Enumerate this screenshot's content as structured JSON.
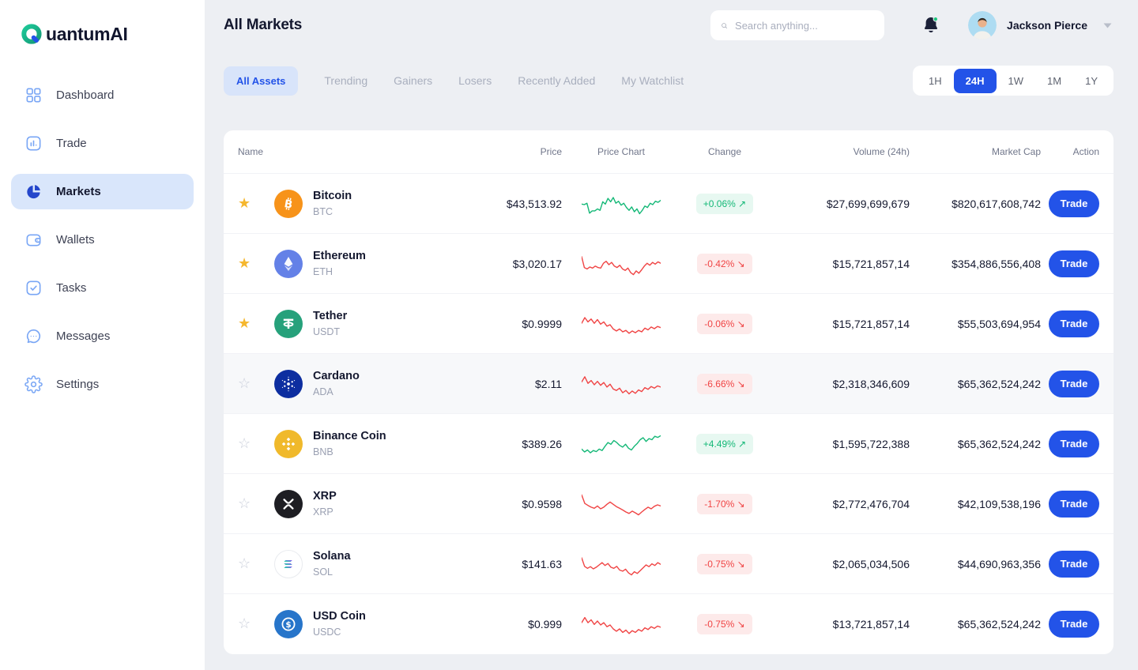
{
  "brand": {
    "name": "QuantumAI"
  },
  "sidebar": {
    "items": [
      {
        "label": "Dashboard",
        "icon": "dashboard-icon",
        "active": false
      },
      {
        "label": "Trade",
        "icon": "trade-icon",
        "active": false
      },
      {
        "label": "Markets",
        "icon": "markets-icon",
        "active": true
      },
      {
        "label": "Wallets",
        "icon": "wallets-icon",
        "active": false
      },
      {
        "label": "Tasks",
        "icon": "tasks-icon",
        "active": false
      },
      {
        "label": "Messages",
        "icon": "messages-icon",
        "active": false
      },
      {
        "label": "Settings",
        "icon": "settings-icon",
        "active": false
      }
    ]
  },
  "header": {
    "title": "All Markets",
    "search_placeholder": "Search anything...",
    "user_name": "Jackson Pierce",
    "notifications_unread": true
  },
  "tabs": [
    {
      "label": "All Assets",
      "active": true
    },
    {
      "label": "Trending",
      "active": false
    },
    {
      "label": "Gainers",
      "active": false
    },
    {
      "label": "Losers",
      "active": false
    },
    {
      "label": "Recently Added",
      "active": false
    },
    {
      "label": "My Watchlist",
      "active": false
    }
  ],
  "time_filters": [
    {
      "label": "1H",
      "active": false
    },
    {
      "label": "24H",
      "active": true
    },
    {
      "label": "1W",
      "active": false
    },
    {
      "label": "1M",
      "active": false
    },
    {
      "label": "1Y",
      "active": false
    }
  ],
  "colors": {
    "accent": "#2353E8",
    "positive": "#14B877",
    "positive_bg": "#E7F8F1",
    "negative": "#F04444",
    "negative_bg": "#FDEAEA",
    "star_active": "#F5B72F",
    "star_inactive": "#C9CEDA"
  },
  "table": {
    "columns": [
      "Name",
      "Price",
      "Price Chart",
      "Change",
      "Volume (24h)",
      "Market Cap",
      "Action"
    ],
    "trade_label": "Trade",
    "arrow_up": "↗",
    "arrow_down": "↘",
    "rows": [
      {
        "name": "Bitcoin",
        "symbol": "BTC",
        "icon": "bitcoin-icon",
        "icon_bg": "#F7931A",
        "favorited": true,
        "highlighted": false,
        "price": "$43,513.92",
        "change": "+0.06%",
        "direction": "up",
        "volume": "$27,699,699,679",
        "market_cap": "$820,617,608,742",
        "spark": [
          52,
          50,
          55,
          20,
          28,
          28,
          35,
          30,
          60,
          52,
          72,
          60,
          75,
          55,
          62,
          48,
          55,
          40,
          30,
          42,
          25,
          35,
          18,
          30,
          45,
          40,
          55,
          50,
          62,
          58,
          65
        ]
      },
      {
        "name": "Ethereum",
        "symbol": "ETH",
        "icon": "ethereum-icon",
        "icon_bg": "#6481E7",
        "favorited": true,
        "highlighted": false,
        "price": "$3,020.17",
        "change": "-0.42%",
        "direction": "down",
        "volume": "$15,721,857,14",
        "market_cap": "$354,886,556,408",
        "spark": [
          78,
          40,
          35,
          42,
          38,
          45,
          40,
          38,
          55,
          62,
          50,
          58,
          45,
          40,
          48,
          35,
          30,
          38,
          22,
          15,
          28,
          20,
          32,
          45,
          55,
          48,
          58,
          52,
          60,
          55
        ]
      },
      {
        "name": "Tether",
        "symbol": "USDT",
        "icon": "tether-icon",
        "icon_bg": "#26A17B",
        "favorited": true,
        "highlighted": false,
        "price": "$0.9999",
        "change": "-0.06%",
        "direction": "down",
        "volume": "$15,721,857,14",
        "market_cap": "$55,503,694,954",
        "spark": [
          55,
          75,
          60,
          70,
          55,
          68,
          52,
          60,
          45,
          50,
          35,
          28,
          35,
          25,
          30,
          20,
          28,
          22,
          30,
          25,
          38,
          32,
          42,
          36,
          44,
          40
        ]
      },
      {
        "name": "Cardano",
        "symbol": "ADA",
        "icon": "cardano-icon",
        "icon_bg": "#0D2EA0",
        "favorited": false,
        "highlighted": true,
        "price": "$2.11",
        "change": "-6.66%",
        "direction": "down",
        "volume": "$2,318,346,609",
        "market_cap": "$65,362,524,242",
        "spark": [
          60,
          78,
          55,
          65,
          50,
          62,
          48,
          58,
          42,
          52,
          35,
          30,
          38,
          22,
          30,
          18,
          28,
          20,
          32,
          26,
          40,
          34,
          44,
          38,
          46,
          42
        ]
      },
      {
        "name": "Binance Coin",
        "symbol": "BNB",
        "icon": "binance-icon",
        "icon_bg": "#F0B92B",
        "favorited": false,
        "highlighted": false,
        "price": "$389.26",
        "change": "+4.49%",
        "direction": "up",
        "volume": "$1,595,722,388",
        "market_cap": "$65,362,524,242",
        "spark": [
          35,
          25,
          32,
          22,
          30,
          26,
          35,
          30,
          45,
          58,
          52,
          65,
          58,
          48,
          42,
          52,
          38,
          32,
          45,
          55,
          68,
          75,
          62,
          72,
          68,
          80,
          76,
          82
        ]
      },
      {
        "name": "XRP",
        "symbol": "XRP",
        "icon": "xrp-icon",
        "icon_bg": "#1E1E23",
        "favorited": false,
        "highlighted": false,
        "price": "$0.9598",
        "change": "-1.70%",
        "direction": "down",
        "volume": "$2,772,476,704",
        "market_cap": "$42,109,538,196",
        "spark": [
          85,
          55,
          48,
          42,
          38,
          46,
          36,
          42,
          52,
          60,
          52,
          44,
          38,
          32,
          25,
          20,
          28,
          22,
          15,
          25,
          34,
          42,
          36,
          45,
          50,
          46
        ]
      },
      {
        "name": "Solana",
        "symbol": "SOL",
        "icon": "solana-icon",
        "icon_bg": "#FFFFFF",
        "icon_border": true,
        "favorited": false,
        "highlighted": false,
        "price": "$141.63",
        "change": "-0.75%",
        "direction": "down",
        "volume": "$2,065,034,506",
        "market_cap": "$44,690,963,356",
        "spark": [
          75,
          45,
          38,
          44,
          36,
          42,
          50,
          58,
          48,
          55,
          42,
          38,
          45,
          32,
          28,
          35,
          22,
          15,
          26,
          20,
          30,
          40,
          50,
          44,
          54,
          48,
          58,
          52
        ]
      },
      {
        "name": "USD Coin",
        "symbol": "USDC",
        "icon": "usdc-icon",
        "icon_bg": "#2775CA",
        "favorited": false,
        "highlighted": false,
        "price": "$0.999",
        "change": "-0.75%",
        "direction": "down",
        "volume": "$13,721,857,14",
        "market_cap": "$65,362,524,242",
        "spark": [
          58,
          76,
          58,
          68,
          52,
          64,
          50,
          58,
          44,
          50,
          36,
          28,
          36,
          24,
          32,
          20,
          30,
          24,
          34,
          28,
          40,
          34,
          44,
          38,
          46,
          42
        ]
      }
    ]
  }
}
